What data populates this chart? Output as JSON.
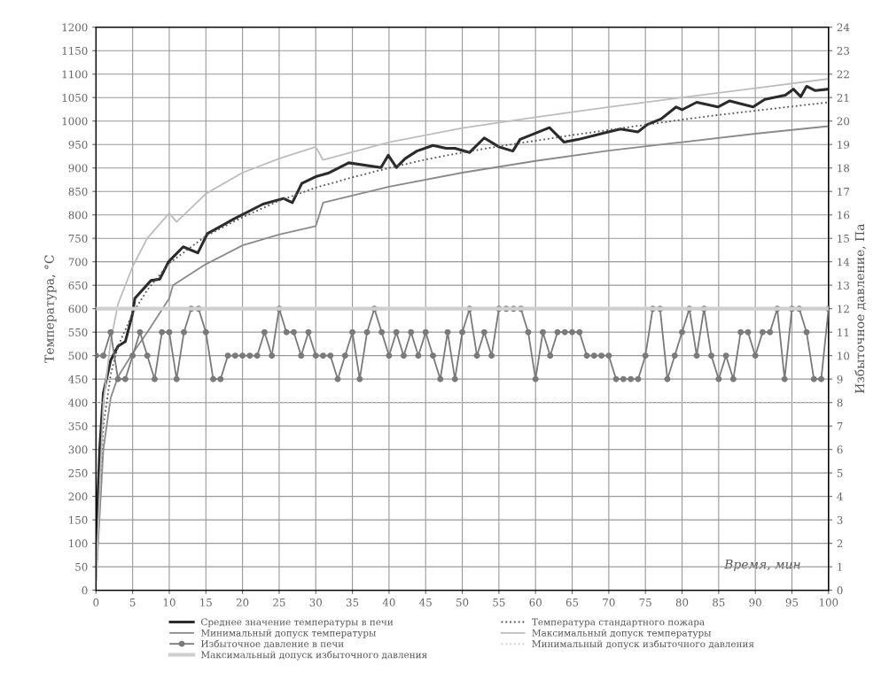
{
  "chart_data": {
    "type": "line",
    "ylabel": "Температура, °С",
    "y2label": "Избыточное давление, Па",
    "xlabel": "Время, мин",
    "xlim": [
      0,
      100
    ],
    "xticks": [
      0,
      5,
      10,
      15,
      20,
      25,
      30,
      35,
      40,
      45,
      50,
      55,
      60,
      65,
      70,
      75,
      80,
      85,
      90,
      95,
      100
    ],
    "ylim": [
      0,
      1200
    ],
    "yticks": [
      0,
      50,
      100,
      150,
      200,
      250,
      300,
      350,
      400,
      450,
      500,
      550,
      600,
      650,
      700,
      750,
      800,
      850,
      900,
      950,
      1000,
      1050,
      1100,
      1150,
      1200
    ],
    "y2lim": [
      0,
      24
    ],
    "y2ticks": [
      0,
      1,
      2,
      3,
      4,
      5,
      6,
      7,
      8,
      9,
      10,
      11,
      12,
      13,
      14,
      15,
      16,
      17,
      18,
      19,
      20,
      21,
      22,
      23,
      24
    ],
    "grid": true,
    "legend": "bottom",
    "series": [
      {
        "name": "Среднее значение температуры в печи",
        "color": "#2b2b2b",
        "line_style": "solid",
        "marker": "none",
        "x": [
          0,
          0.5,
          1,
          2,
          3,
          4,
          5,
          5.3,
          7.5,
          8.7,
          9.9,
          11.9,
          13.9,
          15.2,
          18.8,
          22.8,
          25.6,
          26.8,
          28.1,
          30.1,
          31.7,
          34.5,
          38.9,
          39.9,
          41,
          42.2,
          43.8,
          46,
          47.8,
          49,
          51,
          53,
          55,
          56.9,
          57.9,
          61.9,
          63.9,
          65.9,
          69.2,
          71.6,
          74,
          75.2,
          77.2,
          79.2,
          80,
          82,
          84.9,
          86.5,
          89.7,
          91.3,
          94.1,
          95.2,
          96.2,
          97,
          98.2,
          100
        ],
        "values": [
          100,
          300,
          420,
          490,
          520,
          530,
          590,
          622,
          660,
          663,
          700,
          732,
          719,
          760,
          791,
          823,
          835,
          826,
          867,
          882,
          889,
          911,
          901,
          927,
          901,
          920,
          936,
          948,
          942,
          942,
          933,
          964,
          945,
          936,
          961,
          986,
          955,
          961,
          974,
          983,
          977,
          992,
          1005,
          1030,
          1024,
          1040,
          1030,
          1043,
          1030,
          1046,
          1055,
          1068,
          1052,
          1074,
          1065,
          1068
        ]
      },
      {
        "name": "Температура стандартного пожара",
        "color": "#555555",
        "line_style": "dotted",
        "marker": "none",
        "x": [
          0,
          1,
          2,
          3,
          5,
          7,
          10,
          15,
          20,
          25,
          30,
          35,
          40,
          45,
          50,
          55,
          60,
          65,
          70,
          75,
          80,
          85,
          90,
          95,
          100
        ],
        "values": [
          20,
          350,
          460,
          520,
          590,
          640,
          697,
          755,
          795,
          830,
          858,
          880,
          900,
          918,
          933,
          946,
          958,
          970,
          981,
          992,
          1003,
          1013,
          1022,
          1031,
          1040
        ]
      },
      {
        "name": "Минимальный допуск температуры",
        "color": "#8a8a8a",
        "line_style": "solid",
        "marker": "none",
        "x": [
          0,
          1,
          2,
          3,
          5,
          7,
          10,
          10.5,
          15,
          20,
          25,
          30,
          31,
          40,
          50,
          60,
          70,
          80,
          90,
          100
        ],
        "values": [
          20,
          300,
          410,
          455,
          505,
          550,
          622,
          650,
          695,
          735,
          758,
          776,
          826,
          860,
          890,
          915,
          937,
          955,
          973,
          989
        ]
      },
      {
        "name": "Максимальный допуск температуры",
        "color": "#bdbdbd",
        "line_style": "solid",
        "marker": "none",
        "x": [
          0,
          1,
          2,
          3,
          5,
          7,
          10,
          11,
          15,
          20,
          25,
          30,
          31,
          40,
          50,
          60,
          70,
          80,
          90,
          100
        ],
        "values": [
          20,
          400,
          530,
          610,
          690,
          750,
          804,
          785,
          845,
          890,
          920,
          945,
          917,
          955,
          985,
          1008,
          1030,
          1050,
          1070,
          1090
        ]
      },
      {
        "name": "Избыточное давление в печи",
        "color": "#7a7a7a",
        "line_style": "solid",
        "marker": "circle",
        "axis": "y2",
        "x": [
          0,
          1,
          2,
          3,
          4,
          5,
          6,
          7,
          8,
          9,
          10,
          11,
          12,
          13,
          14,
          15,
          16,
          17,
          18,
          19,
          20,
          21,
          22,
          23,
          24,
          25,
          26,
          27,
          28,
          29,
          30,
          31,
          32,
          33,
          34,
          35,
          36,
          37,
          38,
          39,
          40,
          41,
          42,
          43,
          44,
          45,
          46,
          47,
          48,
          49,
          50,
          51,
          52,
          53,
          54,
          55,
          56,
          57,
          58,
          59,
          60,
          61,
          62,
          63,
          64,
          65,
          66,
          67,
          68,
          69,
          70,
          71,
          72,
          73,
          74,
          75,
          76,
          77,
          78,
          79,
          80,
          81,
          82,
          83,
          84,
          85,
          86,
          87,
          88,
          89,
          90,
          91,
          92,
          93,
          94,
          95,
          96,
          97,
          98,
          99,
          100
        ],
        "values": [
          10,
          10,
          11,
          9,
          9,
          10,
          11,
          10,
          9,
          11,
          11,
          9,
          11,
          12,
          12,
          11,
          9,
          9,
          10,
          10,
          10,
          10,
          10,
          11,
          10,
          12,
          11,
          11,
          10,
          11,
          10,
          10,
          10,
          9,
          10,
          11,
          9,
          11,
          12,
          11,
          10,
          11,
          10,
          11,
          10,
          11,
          10,
          9,
          11,
          9,
          11,
          12,
          10,
          11,
          10,
          12,
          12,
          12,
          12,
          11,
          9,
          11,
          10,
          11,
          11,
          11,
          11,
          10,
          10,
          10,
          10,
          9,
          9,
          9,
          9,
          10,
          12,
          12,
          9,
          10,
          11,
          12,
          10,
          12,
          10,
          9,
          10,
          9,
          11,
          11,
          10,
          11,
          11,
          12,
          9,
          12,
          12,
          11,
          9,
          9,
          12
        ]
      },
      {
        "name": "Минимальный допуск избыточного давления",
        "color": "#c8c8c8",
        "line_style": "dotted",
        "marker": "none",
        "axis": "y2",
        "x": [
          0,
          100
        ],
        "values": [
          8,
          8
        ]
      },
      {
        "name": "Максимальный допуск избыточного давления",
        "color": "#cfcfcf",
        "line_style": "solid",
        "marker": "none",
        "axis": "y2",
        "x": [
          0,
          100
        ],
        "values": [
          12,
          12
        ]
      }
    ]
  }
}
